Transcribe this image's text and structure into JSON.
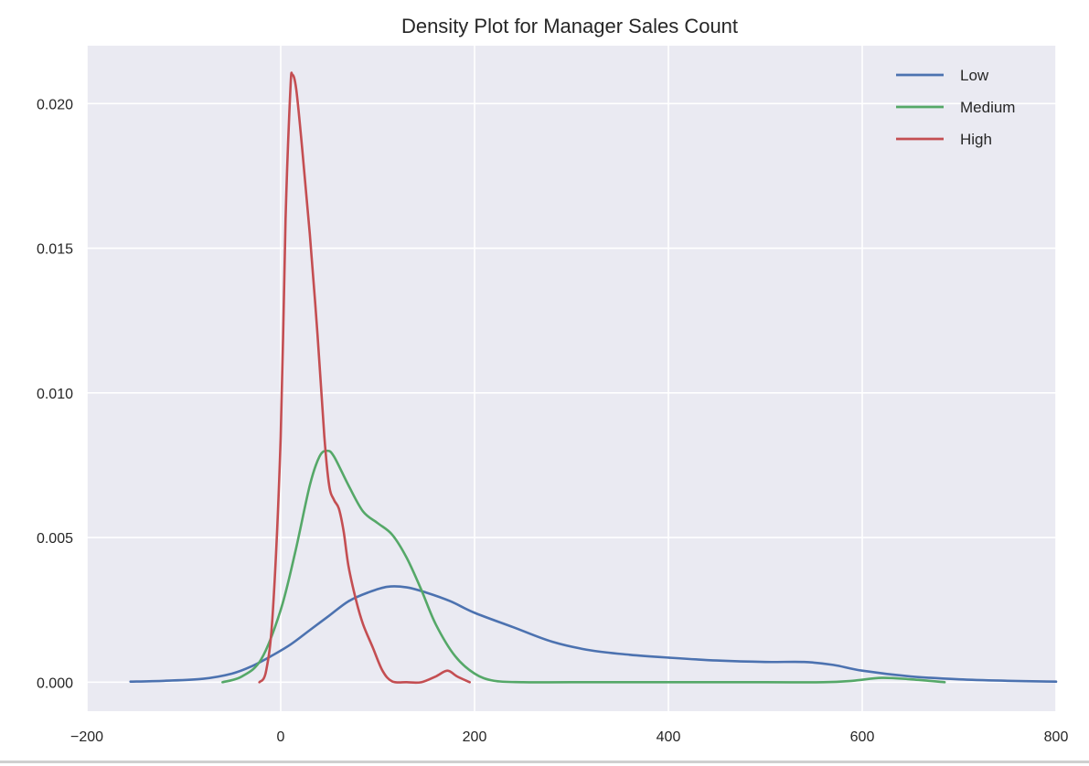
{
  "chart_data": {
    "type": "line",
    "title": "Density Plot for Manager Sales Count",
    "xlabel": "",
    "ylabel": "",
    "xlim": [
      -200,
      800
    ],
    "ylim": [
      -0.001,
      0.022
    ],
    "x_ticks": [
      -200,
      0,
      200,
      400,
      600,
      800
    ],
    "x_tick_labels": [
      "−200",
      "0",
      "200",
      "400",
      "600",
      "800"
    ],
    "y_ticks": [
      0.0,
      0.005,
      0.01,
      0.015,
      0.02
    ],
    "y_tick_labels": [
      "0.000",
      "0.005",
      "0.010",
      "0.015",
      "0.020"
    ],
    "grid": true,
    "legend_position": "top-right",
    "series": [
      {
        "name": "Low",
        "color": "#4c72b0",
        "points": [
          [
            -155,
            2e-05
          ],
          [
            -120,
            5e-05
          ],
          [
            -80,
            0.00012
          ],
          [
            -50,
            0.0003
          ],
          [
            -30,
            0.00055
          ],
          [
            -10,
            0.0009
          ],
          [
            10,
            0.0013
          ],
          [
            30,
            0.0018
          ],
          [
            50,
            0.0023
          ],
          [
            70,
            0.0028
          ],
          [
            90,
            0.0031
          ],
          [
            110,
            0.0033
          ],
          [
            130,
            0.00328
          ],
          [
            150,
            0.0031
          ],
          [
            175,
            0.0028
          ],
          [
            200,
            0.0024
          ],
          [
            240,
            0.0019
          ],
          [
            280,
            0.0014
          ],
          [
            320,
            0.0011
          ],
          [
            360,
            0.00095
          ],
          [
            400,
            0.00085
          ],
          [
            450,
            0.00075
          ],
          [
            500,
            0.0007
          ],
          [
            540,
            0.0007
          ],
          [
            570,
            0.0006
          ],
          [
            600,
            0.0004
          ],
          [
            650,
            0.0002
          ],
          [
            700,
            0.0001
          ],
          [
            750,
            5e-05
          ],
          [
            800,
            2e-05
          ]
        ]
      },
      {
        "name": "Medium",
        "color": "#55a868",
        "points": [
          [
            -60,
            0.0
          ],
          [
            -40,
            0.0002
          ],
          [
            -20,
            0.0008
          ],
          [
            0,
            0.0025
          ],
          [
            15,
            0.0045
          ],
          [
            30,
            0.0068
          ],
          [
            40,
            0.0078
          ],
          [
            48,
            0.008
          ],
          [
            55,
            0.0078
          ],
          [
            70,
            0.0068
          ],
          [
            85,
            0.0059
          ],
          [
            100,
            0.0055
          ],
          [
            115,
            0.0051
          ],
          [
            130,
            0.0043
          ],
          [
            145,
            0.0032
          ],
          [
            160,
            0.002
          ],
          [
            180,
            0.0009
          ],
          [
            200,
            0.0003
          ],
          [
            220,
            5e-05
          ],
          [
            250,
            0.0
          ],
          [
            300,
            0.0
          ],
          [
            400,
            0.0
          ],
          [
            500,
            0.0
          ],
          [
            560,
            0.0
          ],
          [
            590,
            5e-05
          ],
          [
            620,
            0.00015
          ],
          [
            650,
            0.0001
          ],
          [
            685,
            0.0
          ]
        ]
      },
      {
        "name": "High",
        "color": "#c44e52",
        "points": [
          [
            -22,
            0.0
          ],
          [
            -15,
            0.0004
          ],
          [
            -8,
            0.0025
          ],
          [
            0,
            0.0085
          ],
          [
            5,
            0.016
          ],
          [
            10,
            0.0205
          ],
          [
            12,
            0.021
          ],
          [
            16,
            0.0205
          ],
          [
            22,
            0.0185
          ],
          [
            30,
            0.0155
          ],
          [
            38,
            0.012
          ],
          [
            45,
            0.0085
          ],
          [
            50,
            0.0068
          ],
          [
            55,
            0.0063
          ],
          [
            60,
            0.006
          ],
          [
            65,
            0.0052
          ],
          [
            70,
            0.004
          ],
          [
            78,
            0.0028
          ],
          [
            85,
            0.002
          ],
          [
            95,
            0.0012
          ],
          [
            105,
            0.0004
          ],
          [
            115,
            3e-05
          ],
          [
            130,
            0.0
          ],
          [
            145,
            0.0
          ],
          [
            160,
            0.0002
          ],
          [
            172,
            0.0004
          ],
          [
            182,
            0.0002
          ],
          [
            195,
            0.0
          ]
        ]
      }
    ]
  }
}
